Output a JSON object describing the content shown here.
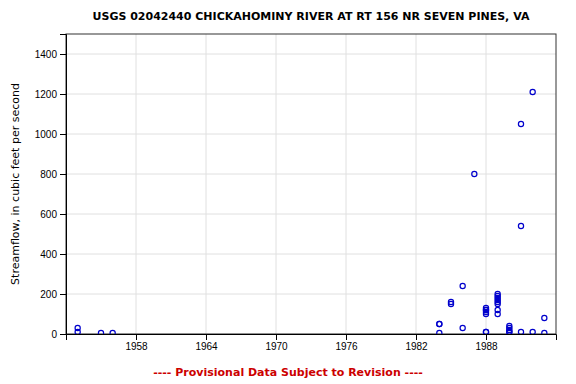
{
  "chart_data": {
    "type": "scatter",
    "title": "USGS 02042440 CHICKAHOMINY RIVER AT RT 156 NR SEVEN PINES, VA",
    "subtitle": "---- Provisional Data Subject to Revision ----",
    "ylabel": "Streamflow, in cubic feet per second",
    "x": [
      1953,
      1953,
      1955,
      1956,
      1984,
      1984,
      1984,
      1985,
      1985,
      1986,
      1986,
      1987,
      1988,
      1988,
      1988,
      1988,
      1988,
      1988,
      1988,
      1989,
      1989,
      1989,
      1989,
      1989,
      1989,
      1989,
      1989,
      1990,
      1990,
      1990,
      1990,
      1990,
      1991,
      1991,
      1991,
      1992,
      1992,
      1993,
      1993
    ],
    "values": [
      30,
      10,
      5,
      5,
      5,
      50,
      50,
      150,
      160,
      240,
      30,
      800,
      100,
      110,
      120,
      120,
      130,
      10,
      10,
      100,
      120,
      150,
      160,
      170,
      180,
      190,
      200,
      10,
      10,
      20,
      30,
      40,
      1050,
      540,
      10,
      1210,
      10,
      80,
      5
    ],
    "color": "#0000cc",
    "marker": "open-circle",
    "xlim": [
      1952,
      1994
    ],
    "xticks": [
      1958,
      1964,
      1970,
      1976,
      1982,
      1988
    ],
    "ylim": [
      0,
      1500
    ],
    "yticks": [
      0,
      200,
      400,
      600,
      800,
      1000,
      1200,
      1400
    ],
    "grid": true
  }
}
